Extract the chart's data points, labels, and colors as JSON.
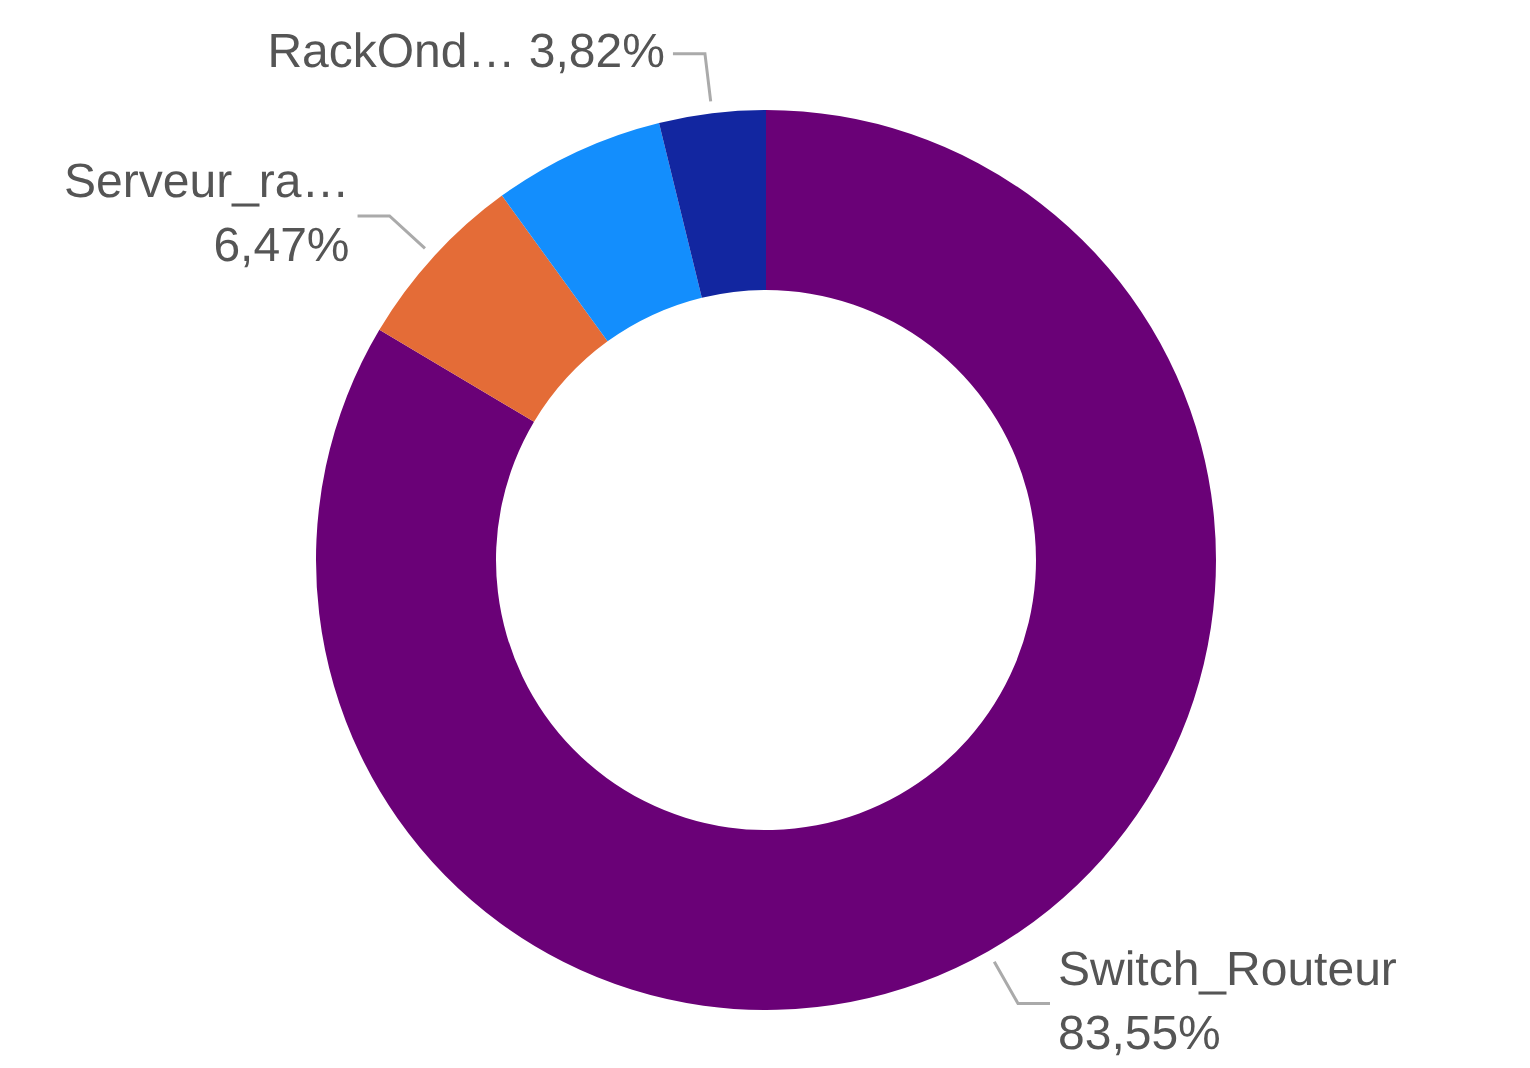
{
  "chart_data": {
    "type": "donut",
    "categories": [
      "Switch_Routeur",
      "Serveur_ra…",
      null,
      "RackOnd…"
    ],
    "values": [
      83.55,
      6.47,
      6.16,
      3.82
    ],
    "colors": [
      "#6a0177",
      "#e46c37",
      "#138efd",
      "#1226a0"
    ],
    "value_labels": [
      "83,55%",
      "6,47%",
      null,
      "3,82%"
    ],
    "legend": false
  }
}
